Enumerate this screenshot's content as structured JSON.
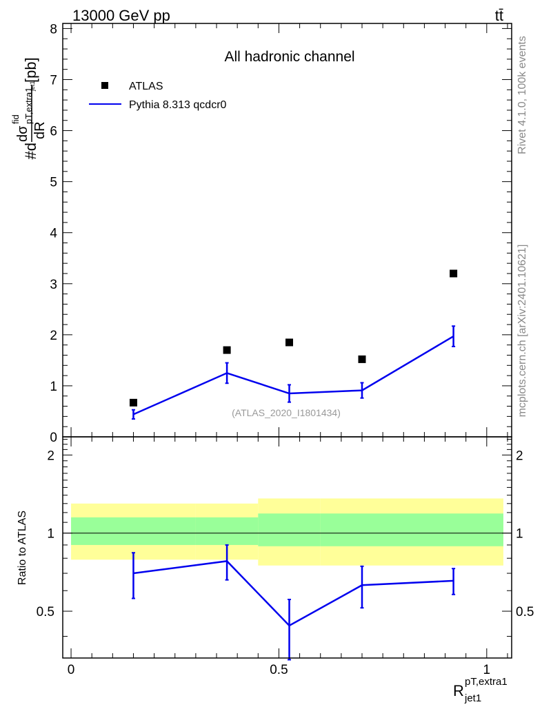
{
  "header": {
    "left": "13000 GeV pp",
    "right": "tt̄"
  },
  "side_labels": {
    "rivet": "Rivet 4.1.0,  100k events",
    "mcplots": "mcplots.cern.ch [arXiv:2401.10621]"
  },
  "chart_data": [
    {
      "type": "scatter",
      "panel": "main",
      "title": "All hadronic channel",
      "watermark": "(ATLAS_2020_I1801434)",
      "ylabel": {
        "prefix": "#d",
        "num": "dσ",
        "num_sup": "fid",
        "num_sub": "pT,extra1",
        "num_subsub": "jet1",
        "den": "dR",
        "unit": "[pb]"
      },
      "xlim": [
        -0.02,
        1.06
      ],
      "ylim": [
        0,
        8.1
      ],
      "yticks": [
        0,
        1,
        2,
        3,
        4,
        5,
        6,
        7,
        8
      ],
      "legend": {
        "position": "top-left",
        "entries": [
          {
            "label": "ATLAS",
            "style": "marker",
            "color": "#000000"
          },
          {
            "label": "Pythia 8.313 qcdcr0",
            "style": "line",
            "color": "#0000ee"
          }
        ]
      },
      "series": [
        {
          "name": "ATLAS",
          "kind": "points",
          "color": "#000000",
          "x": [
            0.15,
            0.375,
            0.525,
            0.7,
            0.92
          ],
          "y": [
            0.67,
            1.7,
            1.85,
            1.52,
            3.2
          ]
        },
        {
          "name": "Pythia 8.313 qcdcr0",
          "kind": "line",
          "color": "#0000ee",
          "x": [
            0.15,
            0.375,
            0.525,
            0.7,
            0.92
          ],
          "y": [
            0.44,
            1.25,
            0.85,
            0.91,
            1.97
          ],
          "err": [
            0.09,
            0.2,
            0.17,
            0.15,
            0.2
          ]
        }
      ]
    },
    {
      "type": "line",
      "panel": "ratio",
      "ylabel": "Ratio to ATLAS",
      "xlabel": {
        "base": "R",
        "sup": "pT,extra1",
        "sub": "jet1"
      },
      "xlim": [
        -0.02,
        1.06
      ],
      "xticks": [
        0,
        0.5,
        1
      ],
      "xtick_labels": [
        "0",
        "0.5",
        "1"
      ],
      "ylim": [
        0.33,
        2.35
      ],
      "yticks": [
        0.5,
        1,
        2
      ],
      "ytick_labels": [
        "0.5",
        "1",
        "2"
      ],
      "reference_line": 1,
      "bands": {
        "bins": [
          [
            0.0,
            0.3
          ],
          [
            0.3,
            0.45
          ],
          [
            0.45,
            0.6
          ],
          [
            0.6,
            1.04
          ]
        ],
        "outer": {
          "color": "#ffff99",
          "lo": [
            0.79,
            0.79,
            0.75,
            0.75
          ],
          "hi": [
            1.3,
            1.3,
            1.36,
            1.36
          ]
        },
        "inner": {
          "color": "#99ff99",
          "lo": [
            0.9,
            0.9,
            0.89,
            0.89
          ],
          "hi": [
            1.15,
            1.15,
            1.19,
            1.19
          ]
        }
      },
      "series": [
        {
          "name": "Pythia 8.313 qcdcr0",
          "color": "#0000ee",
          "x": [
            0.15,
            0.375,
            0.525,
            0.7,
            0.92
          ],
          "y": [
            0.7,
            0.78,
            0.44,
            0.63,
            0.655
          ],
          "err": [
            0.14,
            0.12,
            0.115,
            0.115,
            0.075
          ]
        }
      ]
    }
  ]
}
